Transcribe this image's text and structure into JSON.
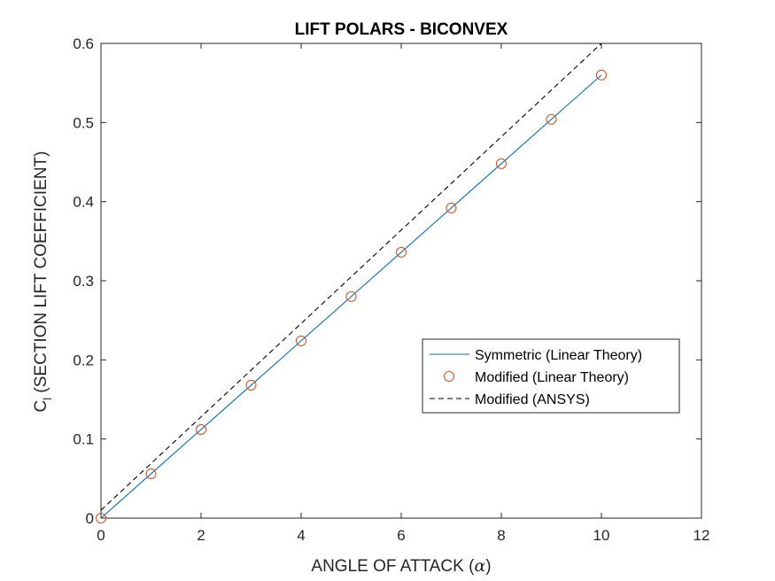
{
  "chart_data": {
    "type": "line",
    "title": "LIFT POLARS - BICONVEX",
    "xlabel": "ANGLE OF ATTACK (α)",
    "xlabel_prefix": "ANGLE OF ATTACK (",
    "xlabel_symbol": "α",
    "xlabel_suffix": ")",
    "ylabel_main": "C",
    "ylabel_sub": "l",
    "ylabel_rest": " (SECTION LIFT COEFFICIENT)",
    "xlim": [
      0,
      12
    ],
    "ylim": [
      0,
      0.6
    ],
    "xticks": [
      0,
      2,
      4,
      6,
      8,
      10,
      12
    ],
    "yticks": [
      0,
      0.1,
      0.2,
      0.3,
      0.4,
      0.5,
      0.6
    ],
    "xtick_labels": [
      "0",
      "2",
      "4",
      "6",
      "8",
      "10",
      "12"
    ],
    "ytick_labels": [
      "0",
      "0.1",
      "0.2",
      "0.3",
      "0.4",
      "0.5",
      "0.6"
    ],
    "grid": false,
    "legend_position": "right",
    "series": [
      {
        "name": "Symmetric (Linear Theory)",
        "style": "solid-line",
        "color": "#0072BD",
        "x": [
          0,
          1,
          2,
          3,
          4,
          5,
          6,
          7,
          8,
          9,
          10
        ],
        "y": [
          0,
          0.056,
          0.112,
          0.168,
          0.224,
          0.28,
          0.336,
          0.392,
          0.448,
          0.504,
          0.56
        ]
      },
      {
        "name": "Modified (Linear Theory)",
        "style": "circle-markers",
        "color": "#D95319",
        "x": [
          0,
          1,
          2,
          3,
          4,
          5,
          6,
          7,
          8,
          9,
          10
        ],
        "y": [
          0,
          0.056,
          0.112,
          0.168,
          0.224,
          0.28,
          0.336,
          0.392,
          0.448,
          0.504,
          0.56
        ]
      },
      {
        "name": "Modified (ANSYS)",
        "style": "dashed-line",
        "color": "#000000",
        "x": [
          0,
          10
        ],
        "y": [
          0.01,
          0.6
        ]
      }
    ]
  }
}
